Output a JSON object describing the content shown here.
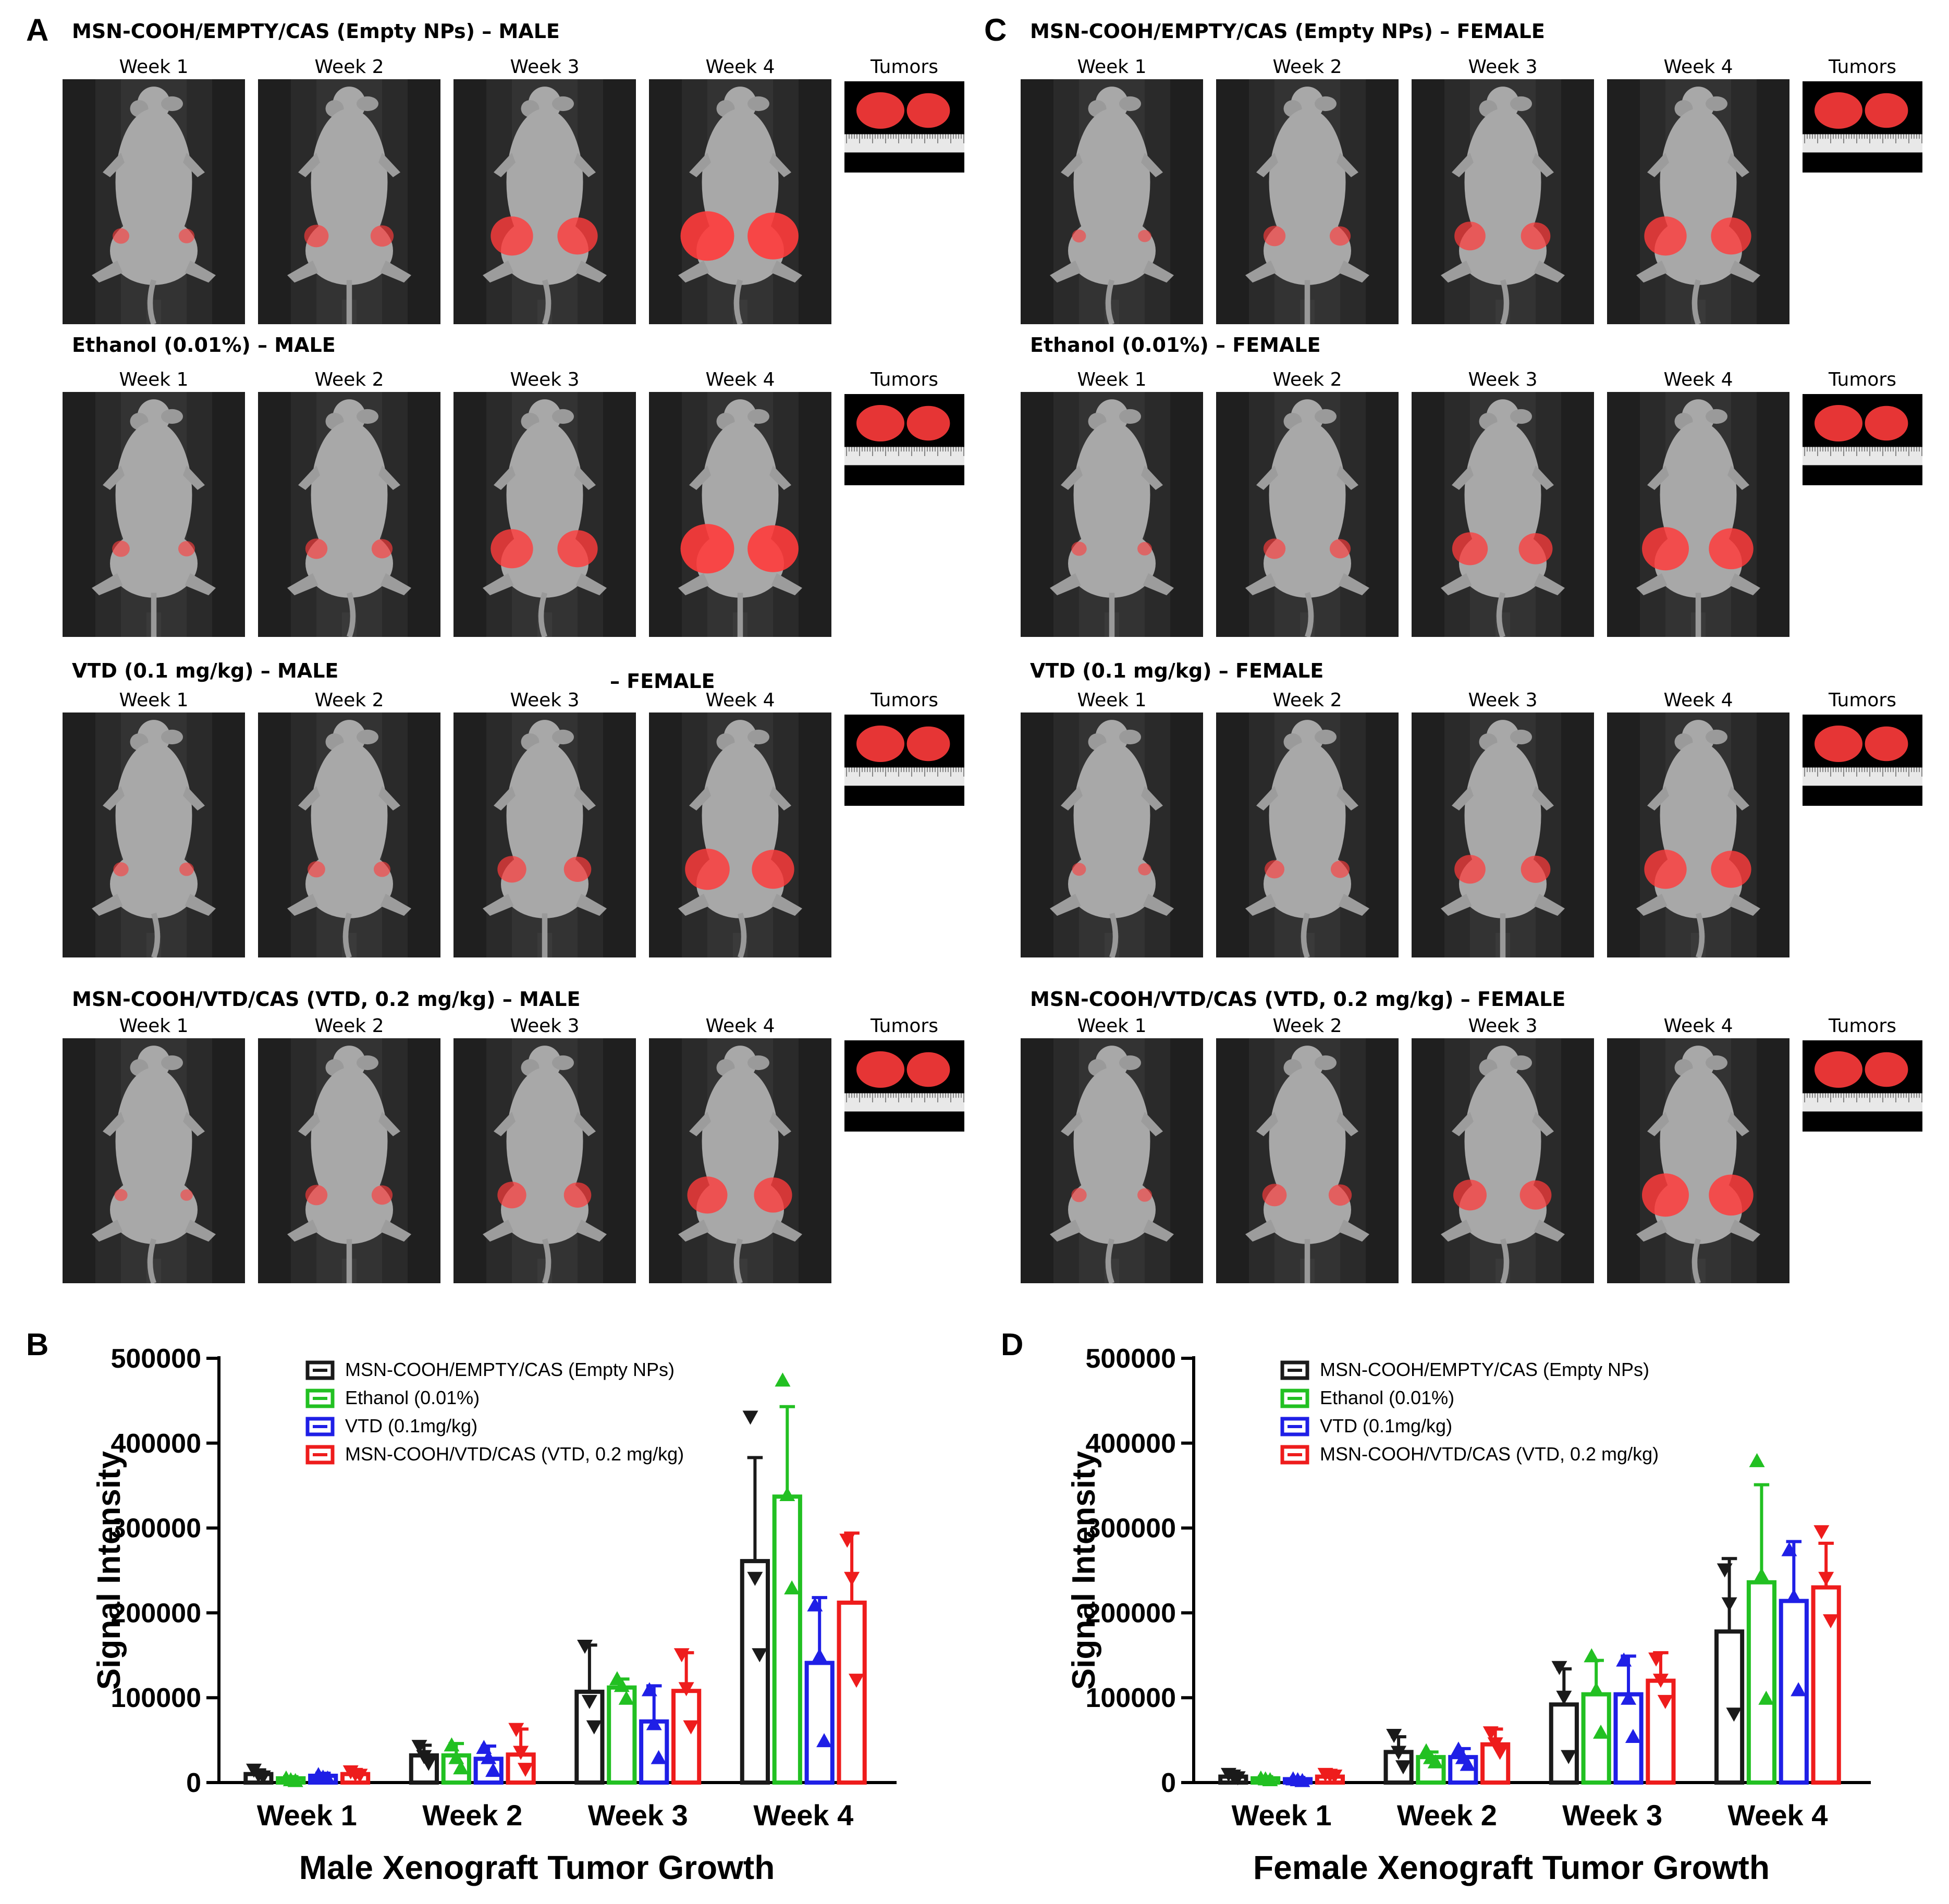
{
  "panels": {
    "A": {
      "letter": "A",
      "rows": [
        {
          "title": "MSN-COOH/EMPTY/CAS (Empty NPs) – MALE",
          "weeks": [
            "Week 1",
            "Week 2",
            "Week 3",
            "Week 4"
          ],
          "tumors_label": "Tumors",
          "tumor_size": [
            0.18,
            0.35,
            0.75,
            1.0
          ]
        },
        {
          "title": "Ethanol (0.01%) – MALE",
          "weeks": [
            "Week 1",
            "Week 2",
            "Week 3",
            "Week 4"
          ],
          "tumors_label": "Tumors",
          "tumor_size": [
            0.2,
            0.3,
            0.75,
            1.0
          ]
        },
        {
          "title": "VTD (0.1 mg/kg) – MALE",
          "weeks": [
            "Week 1",
            "Week 2",
            "Week 3",
            "Week 4"
          ],
          "tumors_label": "Tumors",
          "tumor_size": [
            0.15,
            0.2,
            0.45,
            0.8
          ]
        },
        {
          "title": "MSN-COOH/VTD/CAS (VTD, 0.2 mg/kg) – MALE",
          "weeks": [
            "Week 1",
            "Week 2",
            "Week 3",
            "Week 4"
          ],
          "tumors_label": "Tumors",
          "tumor_size": [
            0.1,
            0.3,
            0.45,
            0.7
          ]
        }
      ]
    },
    "C": {
      "letter": "C",
      "rows": [
        {
          "title": "MSN-COOH/EMPTY/CAS (Empty NPs) – FEMALE",
          "weeks": [
            "Week 1",
            "Week 2",
            "Week 3",
            "Week 4"
          ],
          "tumors_label": "Tumors",
          "tumor_size": [
            0.12,
            0.3,
            0.5,
            0.75
          ]
        },
        {
          "title": "Ethanol (0.01%) – FEMALE",
          "weeks": [
            "Week 1",
            "Week 2",
            "Week 3",
            "Week 4"
          ],
          "tumors_label": "Tumors",
          "tumor_size": [
            0.15,
            0.3,
            0.6,
            0.85
          ]
        },
        {
          "title": "VTD (0.1 mg/kg) – FEMALE",
          "weeks": [
            "Week 1",
            "Week 2",
            "Week 3",
            "Week 4"
          ],
          "tumors_label": "Tumors",
          "tumor_size": [
            0.12,
            0.25,
            0.5,
            0.75
          ]
        },
        {
          "title": "MSN-COOH/VTD/CAS (VTD, 0.2 mg/kg) – FEMALE",
          "weeks": [
            "Week 1",
            "Week 2",
            "Week 3",
            "Week 4"
          ],
          "tumors_label": "Tumors",
          "tumor_size": [
            0.15,
            0.35,
            0.55,
            0.85
          ]
        }
      ]
    },
    "B": {
      "letter": "B"
    },
    "D": {
      "letter": "D"
    }
  },
  "stray_label": "– FEMALE",
  "colors": {
    "empty_nps": "#1a1a1a",
    "ethanol": "#22c022",
    "vtd": "#1f1fe6",
    "msn_vtd": "#ee1c1c",
    "fluorescence": "#ff3b3b"
  },
  "chart_data": [
    {
      "type": "bar",
      "panel": "B",
      "xlabel": "Male Xenograft Tumor Growth",
      "ylabel": "Signal Intensity",
      "ylim": [
        0,
        500000
      ],
      "yticks": [
        "0",
        "100000",
        "200000",
        "300000",
        "400000",
        "500000"
      ],
      "categories": [
        "Week 1",
        "Week 2",
        "Week 3",
        "Week 4"
      ],
      "legend_position": "top-left",
      "series": [
        {
          "name": "MSN-COOH/EMPTY/CAS (Empty NPs)",
          "color": "#1a1a1a",
          "marker": "down-triangle",
          "values": [
            10000,
            32000,
            107000,
            261000
          ],
          "err": [
            5000,
            12000,
            55000,
            122000
          ],
          "points": [
            [
              14000,
              8000,
              6000
            ],
            [
              42000,
              30000,
              22000
            ],
            [
              160000,
              95000,
              65000
            ],
            [
              430000,
              240000,
              150000
            ]
          ]
        },
        {
          "name": "Ethanol (0.01%)",
          "color": "#22c022",
          "marker": "up-triangle",
          "values": [
            5000,
            32000,
            112000,
            337000
          ],
          "err": [
            2000,
            14000,
            10000,
            106000
          ],
          "points": [
            [
              6000,
              4000,
              3000
            ],
            [
              45000,
              30000,
              18000
            ],
            [
              123000,
              115000,
              100000
            ],
            [
              475000,
              340000,
              230000
            ]
          ]
        },
        {
          "name": "VTD (0.1mg/kg)",
          "color": "#1f1fe6",
          "marker": "up-triangle",
          "values": [
            8000,
            28000,
            72000,
            141000
          ],
          "err": [
            3000,
            15000,
            42000,
            77000
          ],
          "points": [
            [
              10000,
              7000,
              6000
            ],
            [
              42000,
              30000,
              15000
            ],
            [
              110000,
              70000,
              30000
            ],
            [
              210000,
              150000,
              50000
            ]
          ]
        },
        {
          "name": "MSN-COOH/VTD/CAS (VTD, 0.2 mg/kg)",
          "color": "#ee1c1c",
          "marker": "down-triangle",
          "values": [
            10000,
            33000,
            108000,
            212000
          ],
          "err": [
            4000,
            30000,
            45000,
            82000
          ],
          "points": [
            [
              12000,
              9000,
              8000
            ],
            [
              62000,
              35000,
              15000
            ],
            [
              150000,
              110000,
              65000
            ],
            [
              285000,
              240000,
              120000
            ]
          ]
        }
      ]
    },
    {
      "type": "bar",
      "panel": "D",
      "xlabel": "Female Xenograft Tumor Growth",
      "ylabel": "Signal Intensity",
      "ylim": [
        0,
        500000
      ],
      "yticks": [
        "0",
        "100000",
        "200000",
        "300000",
        "400000",
        "500000"
      ],
      "categories": [
        "Week 1",
        "Week 2",
        "Week 3",
        "Week 4"
      ],
      "legend_position": "top-left",
      "series": [
        {
          "name": "MSN-COOH/EMPTY/CAS (Empty NPs)",
          "color": "#1a1a1a",
          "marker": "down-triangle",
          "values": [
            7000,
            36000,
            92000,
            178000
          ],
          "err": [
            3000,
            18000,
            42000,
            86000
          ],
          "points": [
            [
              9000,
              7000,
              5000
            ],
            [
              55000,
              35000,
              18000
            ],
            [
              135000,
              100000,
              30000
            ],
            [
              250000,
              210000,
              80000
            ]
          ]
        },
        {
          "name": "Ethanol (0.01%)",
          "color": "#22c022",
          "marker": "up-triangle",
          "values": [
            5000,
            30000,
            104000,
            236000
          ],
          "err": [
            2000,
            6000,
            40000,
            115000
          ],
          "points": [
            [
              6000,
              5000,
              4000
            ],
            [
              38000,
              30000,
              25000
            ],
            [
              150000,
              110000,
              60000
            ],
            [
              380000,
              245000,
              100000
            ]
          ]
        },
        {
          "name": "VTD (0.1mg/kg)",
          "color": "#1f1fe6",
          "marker": "up-triangle",
          "values": [
            4000,
            30000,
            104000,
            214000
          ],
          "err": [
            2000,
            10000,
            45000,
            70000
          ],
          "points": [
            [
              5000,
              4000,
              3000
            ],
            [
              40000,
              30000,
              22000
            ],
            [
              145000,
              100000,
              55000
            ],
            [
              275000,
              220000,
              110000
            ]
          ]
        },
        {
          "name": "MSN-COOH/VTD/CAS (VTD, 0.2 mg/kg)",
          "color": "#ee1c1c",
          "marker": "down-triangle",
          "values": [
            7000,
            45000,
            120000,
            230000
          ],
          "err": [
            3000,
            18000,
            33000,
            52000
          ],
          "points": [
            [
              9000,
              8000,
              7000
            ],
            [
              58000,
              45000,
              35000
            ],
            [
              145000,
              120000,
              95000
            ],
            [
              295000,
              240000,
              190000
            ]
          ]
        }
      ]
    }
  ]
}
